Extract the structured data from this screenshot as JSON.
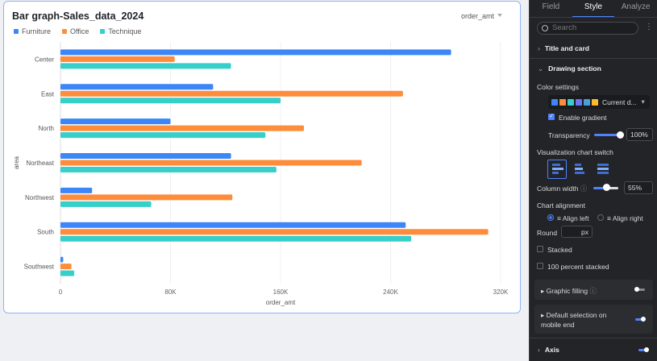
{
  "chart_data": {
    "type": "bar",
    "orientation": "horizontal",
    "title": "Bar graph-Sales_data_2024",
    "xlabel": "order_amt",
    "ylabel": "area",
    "xlim": [
      0,
      320000
    ],
    "xticks": [
      "0",
      "80K",
      "160K",
      "240K",
      "320K"
    ],
    "grid": true,
    "legend_position": "top-left",
    "categories": [
      "Center",
      "East",
      "North",
      "Northeast",
      "Northwest",
      "South",
      "Southwest"
    ],
    "series": [
      {
        "name": "Furniture",
        "color": "#3d86f7",
        "values": [
          284000,
          111000,
          80000,
          124000,
          23000,
          251000,
          2000
        ]
      },
      {
        "name": "Office",
        "color": "#ff8c3a",
        "values": [
          83000,
          249000,
          177000,
          219000,
          125000,
          311000,
          8000
        ]
      },
      {
        "name": "Technique",
        "color": "#36cfc9",
        "values": [
          124000,
          160000,
          149000,
          157000,
          66000,
          255000,
          10000
        ]
      }
    ]
  },
  "measure_selector": "order_amt",
  "panel": {
    "tabs": [
      "Field",
      "Style",
      "Analyze"
    ],
    "active_tab": "Style",
    "search_placeholder": "Search",
    "title_and_card": "Title and card",
    "drawing_section": "Drawing section",
    "color_settings": "Color settings",
    "palette": [
      "#3d86f7",
      "#ff8c3a",
      "#36cfc9",
      "#6f73f5",
      "#4a9fd8",
      "#fcb92c"
    ],
    "palette_label": "Current d...",
    "enable_gradient": "Enable gradient",
    "transparency_label": "Transparency",
    "transparency_value": "100%",
    "viz_switch": "Visualization chart switch",
    "column_width_label": "Column width",
    "column_width_value": "55%",
    "chart_alignment": "Chart alignment",
    "align_left": "Align left",
    "align_right": "Align right",
    "round_label": "Round",
    "round_unit": "px",
    "stacked": "Stacked",
    "percent_stacked": "100 percent stacked",
    "graphic_filling": "Graphic filling",
    "default_selection": "Default selection on mobile end",
    "axis": "Axis"
  }
}
